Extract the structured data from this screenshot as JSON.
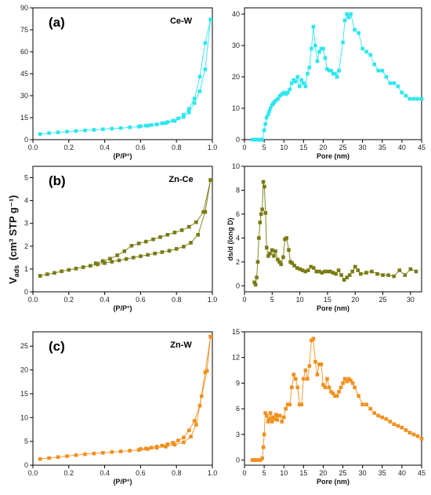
{
  "figure": {
    "shared_ylabel_main": "V",
    "shared_ylabel_sub": "ads",
    "shared_ylabel_units": "(cm³ STP g⁻¹)",
    "shared_ylabel_right": "ds/d (long D)"
  },
  "chart_data": [
    {
      "type": "line",
      "panel": "(a)",
      "label": "Ce-W",
      "color": "#2ee6ee",
      "xlabel": "(P/P°)",
      "xlim": [
        0,
        1.0
      ],
      "ylim": [
        0,
        90
      ],
      "xticks": [
        "0.0",
        "0.2",
        "0.4",
        "0.6",
        "0.8",
        "1.0"
      ],
      "xtick_values": [
        0,
        0.2,
        0.4,
        0.6,
        0.8,
        1.0
      ],
      "yticks": [
        "0",
        "15",
        "30",
        "45",
        "60",
        "75",
        "90"
      ],
      "ytick_values": [
        0,
        15,
        30,
        45,
        60,
        75,
        90
      ],
      "series": [
        {
          "x": [
            0.04,
            0.09,
            0.14,
            0.19,
            0.24,
            0.29,
            0.34,
            0.39,
            0.44,
            0.49,
            0.54,
            0.59,
            0.64,
            0.69,
            0.74,
            0.79,
            0.84,
            0.87,
            0.9,
            0.93,
            0.96,
            0.99
          ],
          "y": [
            3.8,
            4.5,
            5.0,
            5.5,
            5.9,
            6.3,
            6.7,
            7.1,
            7.5,
            7.9,
            8.4,
            8.9,
            9.5,
            10.3,
            11.3,
            12.7,
            15.5,
            18.5,
            25,
            33,
            48,
            82
          ]
        },
        {
          "x": [
            0.99,
            0.96,
            0.93,
            0.9,
            0.87,
            0.84,
            0.81,
            0.78,
            0.75,
            0.72,
            0.69,
            0.66,
            0.63,
            0.6
          ],
          "y": [
            82,
            66,
            43,
            28,
            21,
            17,
            14.5,
            13,
            12,
            11.2,
            10.5,
            10,
            9.6,
            9.2
          ]
        }
      ]
    },
    {
      "type": "line",
      "panel": "",
      "label": "",
      "color": "#2ee6ee",
      "xlabel": "Pore (nm)",
      "xlim": [
        0,
        45
      ],
      "ylim": [
        0,
        42
      ],
      "xticks": [
        "0",
        "5",
        "10",
        "15",
        "20",
        "25",
        "30",
        "35",
        "40",
        "45"
      ],
      "xtick_values": [
        0,
        5,
        10,
        15,
        20,
        25,
        30,
        35,
        40,
        45
      ],
      "yticks": [
        "0",
        "10",
        "20",
        "30",
        "40"
      ],
      "ytick_values": [
        0,
        10,
        20,
        30,
        40
      ],
      "series": [
        {
          "x": [
            2,
            2.5,
            3,
            3.5,
            4,
            4.5,
            5,
            5.3,
            5.6,
            6,
            6.3,
            6.6,
            7,
            7.3,
            7.6,
            8,
            8.5,
            9,
            9.5,
            10,
            10.5,
            11,
            11.5,
            12,
            12.5,
            13,
            13.5,
            14,
            14.5,
            15,
            15.5,
            16,
            16.5,
            17,
            17.5,
            18,
            18.5,
            19,
            19.5,
            20,
            20.5,
            21,
            21.5,
            22,
            22.5,
            23,
            23.5,
            24,
            25,
            25.5,
            26,
            26.5,
            27,
            28,
            29,
            30,
            31,
            32,
            33,
            34,
            35,
            36,
            37,
            38,
            39,
            40,
            41,
            42,
            43,
            44,
            45
          ],
          "y": [
            0,
            0,
            0,
            0,
            0,
            0,
            3,
            5,
            7,
            8,
            9,
            10,
            11,
            11.5,
            12,
            12.5,
            13,
            14,
            14.5,
            15,
            14.5,
            15,
            16,
            18,
            19,
            18.5,
            20,
            17,
            19,
            18,
            17,
            21,
            23,
            29,
            36,
            30,
            25,
            28,
            29,
            29,
            26,
            22.5,
            22,
            22,
            21,
            21,
            20,
            22,
            31,
            38,
            40,
            39,
            40,
            35,
            34,
            29,
            28,
            27,
            24,
            22,
            22,
            20,
            18,
            18,
            17,
            15,
            14,
            13,
            13,
            13,
            13
          ]
        }
      ]
    },
    {
      "type": "line",
      "panel": "(b)",
      "label": "Zn-Ce",
      "color": "#7a7a12",
      "xlabel": "(P/P°)",
      "xlim": [
        0,
        1.0
      ],
      "ylim": [
        0,
        5.5
      ],
      "xticks": [
        "0.0",
        "0.2",
        "0.4",
        "0.6",
        "0.8",
        "1.0"
      ],
      "xtick_values": [
        0,
        0.2,
        0.4,
        0.6,
        0.8,
        1.0
      ],
      "yticks": [
        "0",
        "1",
        "2",
        "3",
        "4",
        "5"
      ],
      "ytick_values": [
        0,
        1,
        2,
        3,
        4,
        5
      ],
      "series": [
        {
          "x": [
            0.04,
            0.08,
            0.12,
            0.16,
            0.2,
            0.24,
            0.28,
            0.32,
            0.36,
            0.4,
            0.44,
            0.48,
            0.52,
            0.56,
            0.6,
            0.64,
            0.68,
            0.72,
            0.76,
            0.8,
            0.84,
            0.88,
            0.92,
            0.96,
            0.99
          ],
          "y": [
            0.7,
            0.77,
            0.83,
            0.9,
            0.96,
            1.02,
            1.08,
            1.14,
            1.2,
            1.26,
            1.32,
            1.38,
            1.44,
            1.5,
            1.56,
            1.62,
            1.68,
            1.74,
            1.8,
            1.88,
            1.98,
            2.15,
            2.5,
            3.5,
            4.9
          ]
        },
        {
          "x": [
            0.99,
            0.95,
            0.91,
            0.87,
            0.83,
            0.79,
            0.75,
            0.71,
            0.67,
            0.63,
            0.59,
            0.55,
            0.51,
            0.47,
            0.43,
            0.39,
            0.35
          ],
          "y": [
            4.9,
            3.5,
            3.05,
            2.85,
            2.7,
            2.6,
            2.5,
            2.4,
            2.3,
            2.2,
            2.12,
            2.02,
            1.78,
            1.6,
            1.45,
            1.35,
            1.25
          ]
        }
      ]
    },
    {
      "type": "line",
      "panel": "",
      "label": "",
      "color": "#7a7a12",
      "xlabel": "Pore (nm)",
      "xlim": [
        0,
        32
      ],
      "ylim": [
        -0.5,
        10
      ],
      "xticks": [
        "0",
        "5",
        "10",
        "15",
        "20",
        "25",
        "30"
      ],
      "xtick_values": [
        0,
        5,
        10,
        15,
        20,
        25,
        30
      ],
      "yticks": [
        "0",
        "2",
        "4",
        "6",
        "8",
        "10"
      ],
      "ytick_values": [
        0,
        2,
        4,
        6,
        8,
        10
      ],
      "series": [
        {
          "x": [
            1.8,
            2,
            2.2,
            2.4,
            2.6,
            2.8,
            3,
            3.2,
            3.4,
            3.6,
            3.8,
            4,
            4.3,
            4.6,
            5,
            5.3,
            5.6,
            6,
            6.3,
            6.6,
            7,
            7.3,
            7.6,
            8,
            8.3,
            8.6,
            9,
            9.5,
            10,
            10.5,
            11,
            11.5,
            12,
            12.5,
            13,
            13.5,
            14,
            14.5,
            15,
            15.5,
            16,
            16.5,
            17,
            17.5,
            18,
            18.5,
            19,
            19.5,
            20,
            20.5,
            21,
            22,
            23,
            24,
            25,
            26,
            27,
            28,
            29,
            30,
            31
          ],
          "y": [
            0.3,
            0.1,
            0.7,
            2,
            4,
            5.3,
            6,
            6.4,
            8.7,
            8.3,
            6.1,
            3.2,
            2.5,
            2.7,
            3,
            2.5,
            2.9,
            2.2,
            2,
            1.8,
            2.4,
            3.9,
            4,
            3,
            2,
            1.9,
            1.7,
            1.5,
            1.4,
            1.3,
            1.2,
            1.3,
            1.6,
            1.5,
            1.2,
            1.2,
            1.1,
            1.2,
            1.2,
            1.2,
            1.1,
            1,
            1.3,
            0.9,
            0.5,
            0.7,
            0.9,
            1.2,
            1.6,
            1.3,
            1,
            1.1,
            1.2,
            1,
            0.9,
            0.9,
            0.8,
            1.3,
            0.9,
            1.4,
            1.2
          ]
        }
      ]
    },
    {
      "type": "line",
      "panel": "(c)",
      "label": "Zn-W",
      "color": "#f0901e",
      "xlabel": "(P/P°)",
      "xlim": [
        0,
        1.0
      ],
      "ylim": [
        0,
        28
      ],
      "xticks": [
        "0.0",
        "0.2",
        "0.4",
        "0.6",
        "0.8",
        "1.0"
      ],
      "xtick_values": [
        0,
        0.2,
        0.4,
        0.6,
        0.8,
        1.0
      ],
      "yticks": [
        "0",
        "5",
        "10",
        "15",
        "20",
        "25"
      ],
      "ytick_values": [
        0,
        5,
        10,
        15,
        20,
        25
      ],
      "series": [
        {
          "x": [
            0.04,
            0.09,
            0.14,
            0.19,
            0.24,
            0.29,
            0.34,
            0.39,
            0.44,
            0.49,
            0.54,
            0.59,
            0.64,
            0.69,
            0.74,
            0.79,
            0.84,
            0.88,
            0.91,
            0.94,
            0.97,
            0.99
          ],
          "y": [
            1.3,
            1.5,
            1.7,
            1.9,
            2.1,
            2.3,
            2.45,
            2.6,
            2.75,
            2.9,
            3.05,
            3.2,
            3.4,
            3.65,
            3.9,
            4.3,
            4.8,
            6,
            8.5,
            14.5,
            19.8,
            27
          ]
        },
        {
          "x": [
            0.99,
            0.96,
            0.93,
            0.9,
            0.87,
            0.84,
            0.81,
            0.78,
            0.75,
            0.72,
            0.69,
            0.66,
            0.63,
            0.6
          ],
          "y": [
            27,
            19.5,
            12.5,
            9.3,
            7.3,
            5.8,
            5.2,
            4.7,
            4.4,
            4.1,
            3.9,
            3.7,
            3.5,
            3.4
          ]
        }
      ]
    },
    {
      "type": "line",
      "panel": "",
      "label": "",
      "color": "#f0901e",
      "xlabel": "Pore (nm)",
      "xlim": [
        0,
        45
      ],
      "ylim": [
        -0.6,
        15
      ],
      "xticks": [
        "0",
        "5",
        "10",
        "15",
        "20",
        "25",
        "30",
        "35",
        "40",
        "45"
      ],
      "xtick_values": [
        0,
        5,
        10,
        15,
        20,
        25,
        30,
        35,
        40,
        45
      ],
      "yticks": [
        "0",
        "3",
        "6",
        "9",
        "12",
        "15"
      ],
      "ytick_values": [
        0,
        3,
        6,
        9,
        12,
        15
      ],
      "series": [
        {
          "x": [
            2,
            2.5,
            3,
            3.5,
            4,
            4.5,
            4.8,
            5,
            5.3,
            5.6,
            6,
            6.3,
            6.6,
            7,
            7.3,
            7.6,
            8,
            8.3,
            8.6,
            9,
            9.5,
            10,
            10.5,
            11,
            11.5,
            12,
            12.5,
            13,
            13.5,
            14,
            14.5,
            15,
            15.5,
            16,
            16.5,
            17,
            17.5,
            18,
            18.5,
            19,
            19.5,
            20,
            20.5,
            21,
            21.5,
            22,
            22.5,
            23,
            23.5,
            24,
            24.5,
            25,
            25.5,
            26,
            26.5,
            27,
            27.5,
            28,
            29,
            30,
            31,
            32,
            33,
            34,
            35,
            36,
            37,
            38,
            39,
            40,
            41,
            42,
            43,
            44,
            45
          ],
          "y": [
            0,
            0,
            0,
            0,
            0,
            0.2,
            1.5,
            3,
            5.5,
            5.2,
            4.5,
            4.8,
            5.5,
            4.5,
            5,
            4.8,
            5.3,
            4.7,
            5.2,
            5.2,
            4.5,
            5,
            6,
            6.5,
            6.5,
            8.5,
            10,
            9.5,
            8.5,
            6.5,
            6.5,
            9.5,
            10.5,
            9.5,
            11,
            14,
            14.2,
            11.5,
            10,
            11.2,
            11.2,
            8.8,
            8.5,
            9.5,
            8.5,
            8,
            7.8,
            7.5,
            7.5,
            8,
            8.5,
            9,
            9.5,
            9.2,
            9.5,
            9.3,
            9,
            8.5,
            7.5,
            6.5,
            6.5,
            6,
            5.5,
            5.2,
            5,
            4.8,
            4.5,
            4.2,
            4,
            3.8,
            3.5,
            3.2,
            3,
            2.8,
            2.5
          ]
        }
      ]
    }
  ]
}
